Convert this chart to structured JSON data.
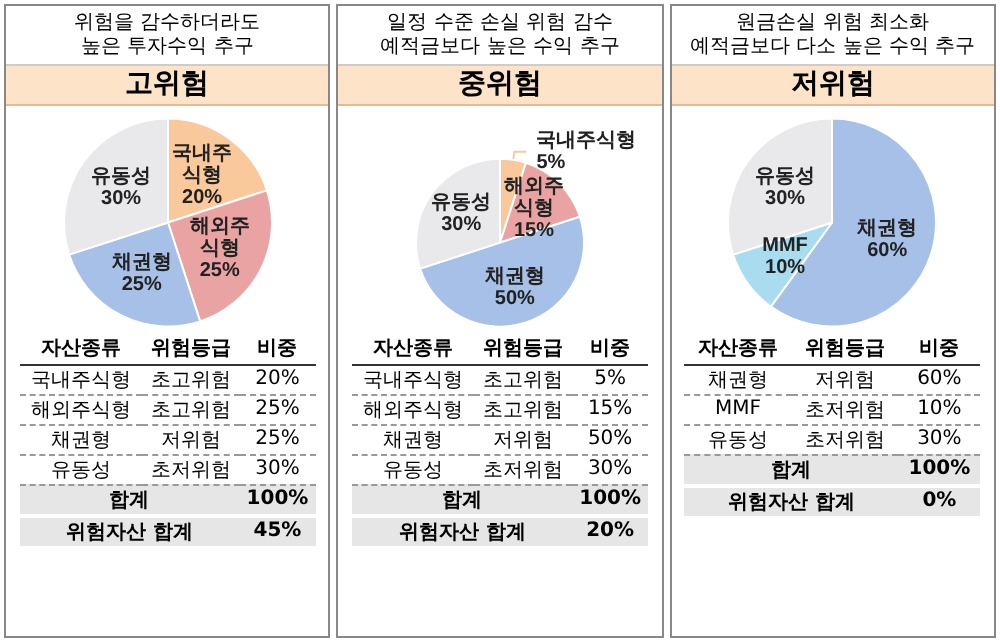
{
  "chart_data": [
    {
      "type": "pie",
      "title": "위험을 감수하더라도\n높은 투자수익 추구",
      "subtitle": "고위험",
      "legend": false,
      "categories": [
        "국내주식형",
        "해외주식형",
        "채권형",
        "유동성"
      ],
      "values": [
        20,
        25,
        25,
        30
      ],
      "colors": [
        "#f9c99c",
        "#e9a3a3",
        "#a6c0e8",
        "#e9e9ec"
      ],
      "value_labels": [
        "20%",
        "25%",
        "25%",
        "30%"
      ],
      "annotations": [
        "자산종류",
        "위험등급",
        "비중",
        "초고위험",
        "초고위험",
        "저위험",
        "초저위험",
        "합계",
        "100%",
        "위험자산 합계",
        "45%"
      ]
    },
    {
      "type": "pie",
      "title": "일정 수준 손실 위험 감수\n예적금보다 높은 수익 추구",
      "subtitle": "중위험",
      "legend": false,
      "categories": [
        "국내주식형",
        "해외주식형",
        "채권형",
        "유동성"
      ],
      "values": [
        5,
        15,
        50,
        30
      ],
      "colors": [
        "#f9c99c",
        "#e9a3a3",
        "#a6c0e8",
        "#e9e9ec"
      ],
      "value_labels": [
        "5%",
        "15%",
        "50%",
        "30%"
      ],
      "annotations": [
        "자산종류",
        "위험등급",
        "비중",
        "초고위험",
        "초고위험",
        "저위험",
        "초저위험",
        "합계",
        "100%",
        "위험자산 합계",
        "20%"
      ]
    },
    {
      "type": "pie",
      "title": "원금손실 위험 최소화\n예적금보다 다소 높은 수익 추구",
      "subtitle": "저위험",
      "legend": false,
      "categories": [
        "채권형",
        "MMF",
        "유동성"
      ],
      "values": [
        60,
        10,
        30
      ],
      "colors": [
        "#a6c0e8",
        "#a9dcef",
        "#e9e9ec"
      ],
      "value_labels": [
        "60%",
        "10%",
        "30%"
      ],
      "annotations": [
        "자산종류",
        "위험등급",
        "비중",
        "저위험",
        "초저위험",
        "초저위험",
        "합계",
        "100%",
        "위험자산 합계",
        "0%"
      ]
    }
  ]
}
